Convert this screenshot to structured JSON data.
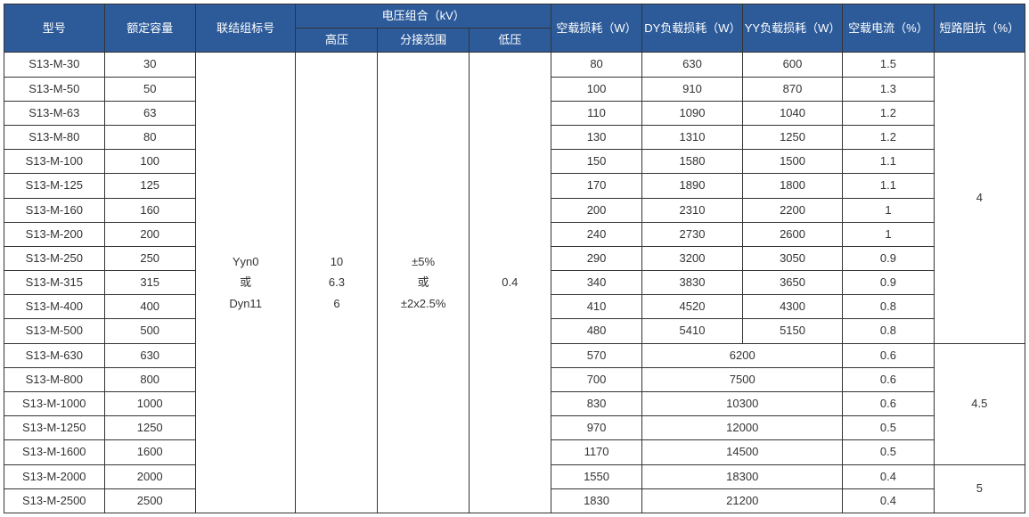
{
  "header": {
    "model": "型号",
    "rated_capacity": "额定容量",
    "connection": "联结组标号",
    "voltage_group": "电压组合（kV）",
    "hv": "高压",
    "tap": "分接范围",
    "lv": "低压",
    "no_load_loss": "空载损耗（W）",
    "dy_load_loss": "DY负载损耗（W）",
    "yy_load_loss": "YY负载损耗（W）",
    "no_load_current": "空载电流（%）",
    "impedance": "短路阻抗（%）"
  },
  "merged": {
    "connection": "Yyn0\n或\nDyn11",
    "hv": "10\n6.3\n6",
    "tap": "±5%\n或\n±2x2.5%",
    "lv": "0.4",
    "impedance_a": "4",
    "impedance_b": "4.5",
    "impedance_c": "5"
  },
  "rows_a": [
    {
      "model": "S13-M-30",
      "cap": "30",
      "nl": "80",
      "dy": "630",
      "yy": "600",
      "cur": "1.5"
    },
    {
      "model": "S13-M-50",
      "cap": "50",
      "nl": "100",
      "dy": "910",
      "yy": "870",
      "cur": "1.3"
    },
    {
      "model": "S13-M-63",
      "cap": "63",
      "nl": "110",
      "dy": "1090",
      "yy": "1040",
      "cur": "1.2"
    },
    {
      "model": "S13-M-80",
      "cap": "80",
      "nl": "130",
      "dy": "1310",
      "yy": "1250",
      "cur": "1.2"
    },
    {
      "model": "S13-M-100",
      "cap": "100",
      "nl": "150",
      "dy": "1580",
      "yy": "1500",
      "cur": "1.1"
    },
    {
      "model": "S13-M-125",
      "cap": "125",
      "nl": "170",
      "dy": "1890",
      "yy": "1800",
      "cur": "1.1"
    },
    {
      "model": "S13-M-160",
      "cap": "160",
      "nl": "200",
      "dy": "2310",
      "yy": "2200",
      "cur": "1"
    },
    {
      "model": "S13-M-200",
      "cap": "200",
      "nl": "240",
      "dy": "2730",
      "yy": "2600",
      "cur": "1"
    },
    {
      "model": "S13-M-250",
      "cap": "250",
      "nl": "290",
      "dy": "3200",
      "yy": "3050",
      "cur": "0.9"
    },
    {
      "model": "S13-M-315",
      "cap": "315",
      "nl": "340",
      "dy": "3830",
      "yy": "3650",
      "cur": "0.9"
    },
    {
      "model": "S13-M-400",
      "cap": "400",
      "nl": "410",
      "dy": "4520",
      "yy": "4300",
      "cur": "0.8"
    },
    {
      "model": "S13-M-500",
      "cap": "500",
      "nl": "480",
      "dy": "5410",
      "yy": "5150",
      "cur": "0.8"
    }
  ],
  "rows_b": [
    {
      "model": "S13-M-630",
      "cap": "630",
      "nl": "570",
      "load": "6200",
      "cur": "0.6"
    },
    {
      "model": "S13-M-800",
      "cap": "800",
      "nl": "700",
      "load": "7500",
      "cur": "0.6"
    },
    {
      "model": "S13-M-1000",
      "cap": "1000",
      "nl": "830",
      "load": "10300",
      "cur": "0.6"
    },
    {
      "model": "S13-M-1250",
      "cap": "1250",
      "nl": "970",
      "load": "12000",
      "cur": "0.5"
    },
    {
      "model": "S13-M-1600",
      "cap": "1600",
      "nl": "1170",
      "load": "14500",
      "cur": "0.5"
    }
  ],
  "rows_c": [
    {
      "model": "S13-M-2000",
      "cap": "2000",
      "nl": "1550",
      "load": "18300",
      "cur": "0.4"
    },
    {
      "model": "S13-M-2500",
      "cap": "2500",
      "nl": "1830",
      "load": "21200",
      "cur": "0.4"
    }
  ],
  "colwidths": [
    "110",
    "100",
    "110",
    "90",
    "100",
    "90",
    "100",
    "110",
    "110",
    "100",
    "100"
  ]
}
